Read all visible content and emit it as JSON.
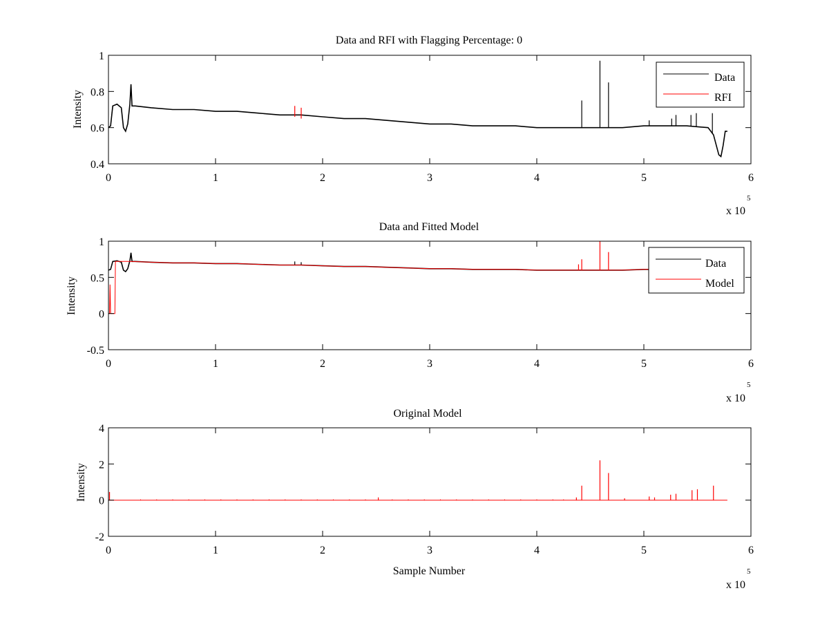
{
  "chart_data": [
    {
      "type": "line",
      "title": "Data and RFI with Flagging Percentage: 0",
      "xlabel": "",
      "ylabel": "Intensity",
      "xlim": [
        0,
        6
      ],
      "ylim": [
        0.4,
        1
      ],
      "xticks": [
        0,
        1,
        2,
        3,
        4,
        5,
        6
      ],
      "xtick_labels": [
        "0",
        "1",
        "2",
        "3",
        "4",
        "5",
        "6"
      ],
      "yticks": [
        0.4,
        0.6,
        0.8,
        1
      ],
      "ytick_labels": [
        "0.4",
        "0.6",
        "0.8",
        "1"
      ],
      "x_multiplier_base": "x 10",
      "x_multiplier_exp": "5",
      "legend_position": "top-right",
      "series": [
        {
          "name": "Data",
          "color": "#000000",
          "x": [
            0,
            0.02,
            0.04,
            0.08,
            0.12,
            0.14,
            0.16,
            0.18,
            0.2,
            0.21,
            0.22,
            0.25,
            0.4,
            0.6,
            0.8,
            1.0,
            1.2,
            1.4,
            1.6,
            1.8,
            2.0,
            2.2,
            2.4,
            2.6,
            2.8,
            3.0,
            3.2,
            3.4,
            3.6,
            3.8,
            4.0,
            4.2,
            4.4,
            4.6,
            4.8,
            5.0,
            5.2,
            5.4,
            5.6,
            5.65,
            5.7,
            5.72,
            5.74,
            5.76,
            5.78
          ],
          "y": [
            0.6,
            0.61,
            0.72,
            0.73,
            0.71,
            0.6,
            0.58,
            0.62,
            0.73,
            0.84,
            0.72,
            0.72,
            0.71,
            0.7,
            0.7,
            0.69,
            0.69,
            0.68,
            0.67,
            0.67,
            0.66,
            0.65,
            0.65,
            0.64,
            0.63,
            0.62,
            0.62,
            0.61,
            0.61,
            0.61,
            0.6,
            0.6,
            0.6,
            0.6,
            0.6,
            0.61,
            0.61,
            0.61,
            0.6,
            0.56,
            0.45,
            0.44,
            0.5,
            0.58,
            0.58
          ],
          "spikes": [
            {
              "x": 4.42,
              "y": 0.75
            },
            {
              "x": 4.59,
              "y": 0.97
            },
            {
              "x": 4.67,
              "y": 0.85
            },
            {
              "x": 5.05,
              "y": 0.64
            },
            {
              "x": 5.26,
              "y": 0.65
            },
            {
              "x": 5.3,
              "y": 0.67
            },
            {
              "x": 5.44,
              "y": 0.67
            },
            {
              "x": 5.49,
              "y": 0.68
            },
            {
              "x": 5.64,
              "y": 0.68
            }
          ]
        },
        {
          "name": "RFI",
          "color": "#ff0000",
          "x": [],
          "y": [],
          "spikes": [
            {
              "x": 1.74,
              "y": 0.72
            },
            {
              "x": 1.8,
              "y": 0.71
            }
          ]
        }
      ]
    },
    {
      "type": "line",
      "title": "Data and Fitted Model",
      "xlabel": "",
      "ylabel": "Intensity",
      "xlim": [
        0,
        6
      ],
      "ylim": [
        -0.5,
        1
      ],
      "xticks": [
        0,
        1,
        2,
        3,
        4,
        5,
        6
      ],
      "xtick_labels": [
        "0",
        "1",
        "2",
        "3",
        "4",
        "5",
        "6"
      ],
      "yticks": [
        -0.5,
        0,
        0.5,
        1
      ],
      "ytick_labels": [
        "-0.5",
        "0",
        "0.5",
        "1"
      ],
      "x_multiplier_base": "x 10",
      "x_multiplier_exp": "5",
      "legend_position": "top-right",
      "series": [
        {
          "name": "Data",
          "color": "#000000",
          "x": [
            0,
            0.02,
            0.04,
            0.08,
            0.12,
            0.14,
            0.16,
            0.18,
            0.2,
            0.21,
            0.22,
            0.25,
            0.4,
            0.6,
            0.8,
            1.0,
            1.2,
            1.4,
            1.6,
            1.8,
            2.0,
            2.2,
            2.4,
            2.6,
            2.8,
            3.0,
            3.2,
            3.4,
            3.6,
            3.8,
            4.0,
            4.2,
            4.4,
            4.6,
            4.8,
            5.0,
            5.05
          ],
          "y": [
            0.6,
            0.61,
            0.72,
            0.73,
            0.71,
            0.6,
            0.58,
            0.62,
            0.73,
            0.84,
            0.72,
            0.72,
            0.71,
            0.7,
            0.7,
            0.69,
            0.69,
            0.68,
            0.67,
            0.67,
            0.66,
            0.65,
            0.65,
            0.64,
            0.63,
            0.62,
            0.62,
            0.61,
            0.61,
            0.61,
            0.6,
            0.6,
            0.6,
            0.6,
            0.6,
            0.61,
            0.61
          ],
          "spikes": [
            {
              "x": 1.74,
              "y": 0.72
            },
            {
              "x": 1.8,
              "y": 0.71
            }
          ]
        },
        {
          "name": "Model",
          "color": "#ff0000",
          "x": [
            0,
            0.01,
            0.015,
            0.02,
            0.06,
            0.065,
            0.07,
            0.2,
            0.4,
            0.6,
            0.8,
            1.0,
            1.2,
            1.4,
            1.6,
            1.8,
            2.0,
            2.2,
            2.4,
            2.6,
            2.8,
            3.0,
            3.2,
            3.4,
            3.6,
            3.8,
            4.0,
            4.2,
            4.4,
            4.6,
            4.8,
            5.0,
            5.05
          ],
          "y": [
            0.0,
            0.0,
            0.4,
            0.0,
            0.0,
            0.72,
            0.72,
            0.72,
            0.71,
            0.7,
            0.7,
            0.69,
            0.69,
            0.68,
            0.67,
            0.67,
            0.66,
            0.65,
            0.65,
            0.64,
            0.63,
            0.62,
            0.62,
            0.61,
            0.61,
            0.61,
            0.6,
            0.6,
            0.6,
            0.6,
            0.6,
            0.61,
            0.61
          ],
          "spikes": [
            {
              "x": 4.39,
              "y": 0.68
            },
            {
              "x": 4.42,
              "y": 0.75
            },
            {
              "x": 4.59,
              "y": 1.0
            },
            {
              "x": 4.67,
              "y": 0.85
            }
          ]
        }
      ]
    },
    {
      "type": "line",
      "title": "Original Model",
      "xlabel": "Sample Number",
      "ylabel": "Intensity",
      "xlim": [
        0,
        6
      ],
      "ylim": [
        -2,
        4
      ],
      "xticks": [
        0,
        1,
        2,
        3,
        4,
        5,
        6
      ],
      "xtick_labels": [
        "0",
        "1",
        "2",
        "3",
        "4",
        "5",
        "6"
      ],
      "yticks": [
        -2,
        0,
        2,
        4
      ],
      "ytick_labels": [
        "-2",
        "0",
        "2",
        "4"
      ],
      "x_multiplier_base": "x 10",
      "x_multiplier_exp": "5",
      "series": [
        {
          "name": "Original Model",
          "color": "#ff0000",
          "x": [
            0,
            5.78
          ],
          "y": [
            0,
            0
          ],
          "spikes": [
            {
              "x": 0.01,
              "y": 0.45
            },
            {
              "x": 2.52,
              "y": 0.15
            },
            {
              "x": 4.37,
              "y": 0.15
            },
            {
              "x": 4.42,
              "y": 0.8
            },
            {
              "x": 4.59,
              "y": 2.2
            },
            {
              "x": 4.67,
              "y": 1.5
            },
            {
              "x": 4.82,
              "y": 0.1
            },
            {
              "x": 5.05,
              "y": 0.2
            },
            {
              "x": 5.1,
              "y": 0.15
            },
            {
              "x": 5.25,
              "y": 0.3
            },
            {
              "x": 5.3,
              "y": 0.35
            },
            {
              "x": 5.45,
              "y": 0.55
            },
            {
              "x": 5.5,
              "y": 0.6
            },
            {
              "x": 5.65,
              "y": 0.8
            }
          ],
          "minor_spike_height": 0.04,
          "minor_spike_x": [
            0.3,
            0.45,
            0.6,
            0.75,
            0.9,
            1.05,
            1.2,
            1.35,
            1.5,
            1.65,
            1.8,
            1.95,
            2.1,
            2.25,
            2.4,
            2.65,
            2.8,
            2.95,
            3.1,
            3.25,
            3.4,
            3.55,
            3.7,
            3.85,
            4.0,
            4.15,
            4.25
          ]
        }
      ]
    }
  ]
}
